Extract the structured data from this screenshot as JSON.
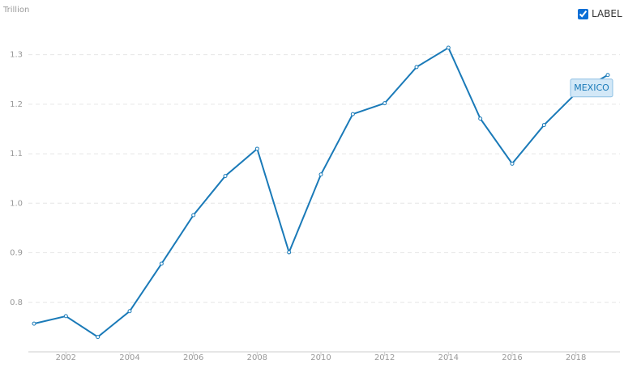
{
  "chart_data": {
    "type": "line",
    "y_unit": "Trillion",
    "legend_toggle": "LABEL",
    "x": [
      2001,
      2002,
      2003,
      2004,
      2005,
      2006,
      2007,
      2008,
      2009,
      2010,
      2011,
      2012,
      2013,
      2014,
      2015,
      2016,
      2017,
      2018,
      2019
    ],
    "series": [
      {
        "name": "MEXICO",
        "color": "#1a7ab8",
        "values": [
          0.757,
          0.772,
          0.73,
          0.782,
          0.878,
          0.976,
          1.055,
          1.11,
          0.901,
          1.058,
          1.18,
          1.202,
          1.275,
          1.314,
          1.171,
          1.08,
          1.158,
          1.222,
          1.259
        ]
      }
    ],
    "xlim": [
      2001,
      2019
    ],
    "xticks": [
      2002,
      2004,
      2006,
      2008,
      2010,
      2012,
      2014,
      2016,
      2018
    ],
    "ylim": [
      0.7,
      1.35
    ],
    "yticks": [
      0.8,
      0.9,
      {
        "value": 1,
        "label": "1.0"
      },
      1.1,
      1.2,
      1.3
    ],
    "grid": true
  }
}
